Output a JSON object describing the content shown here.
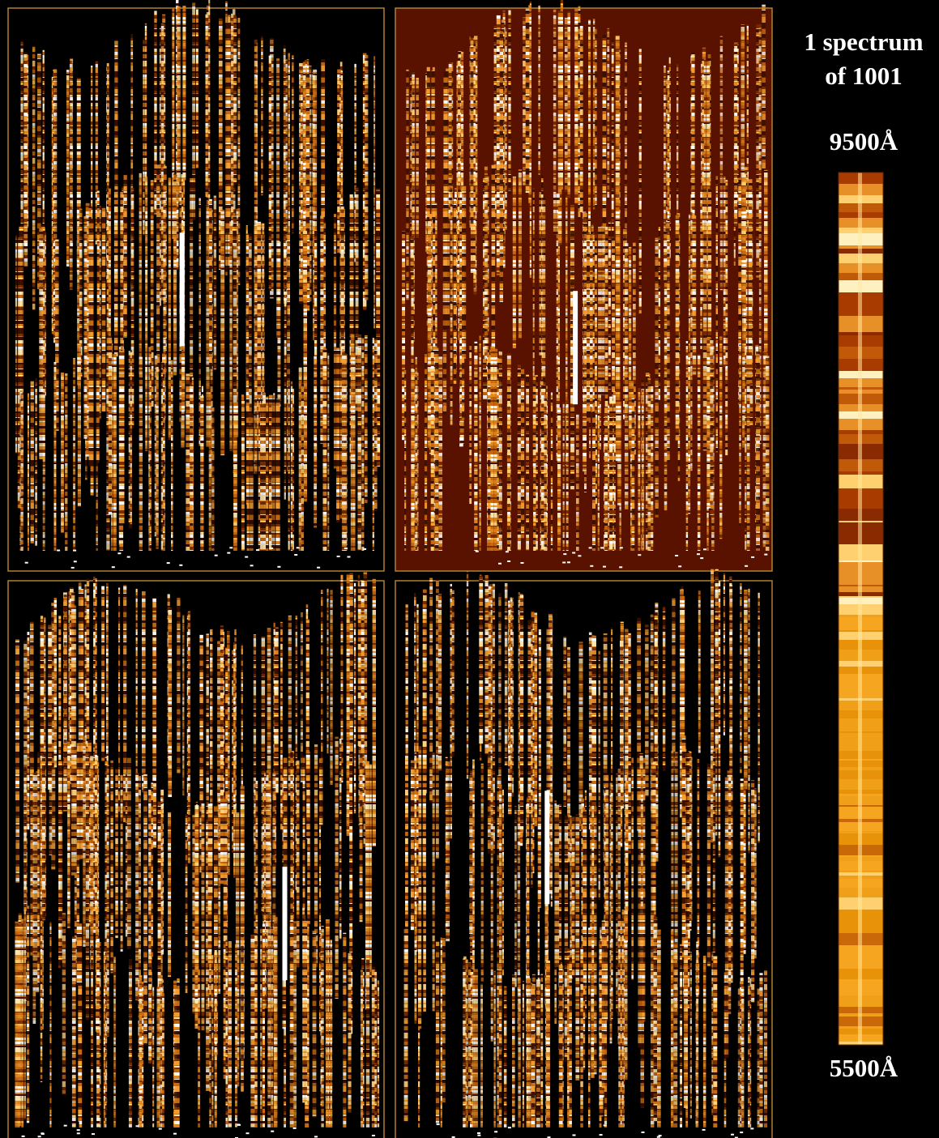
{
  "caption": [
    "1 spectrum",
    "of 1001"
  ],
  "top_wavelength": "9500Å",
  "bottom_wavelength": "5500Å"
}
